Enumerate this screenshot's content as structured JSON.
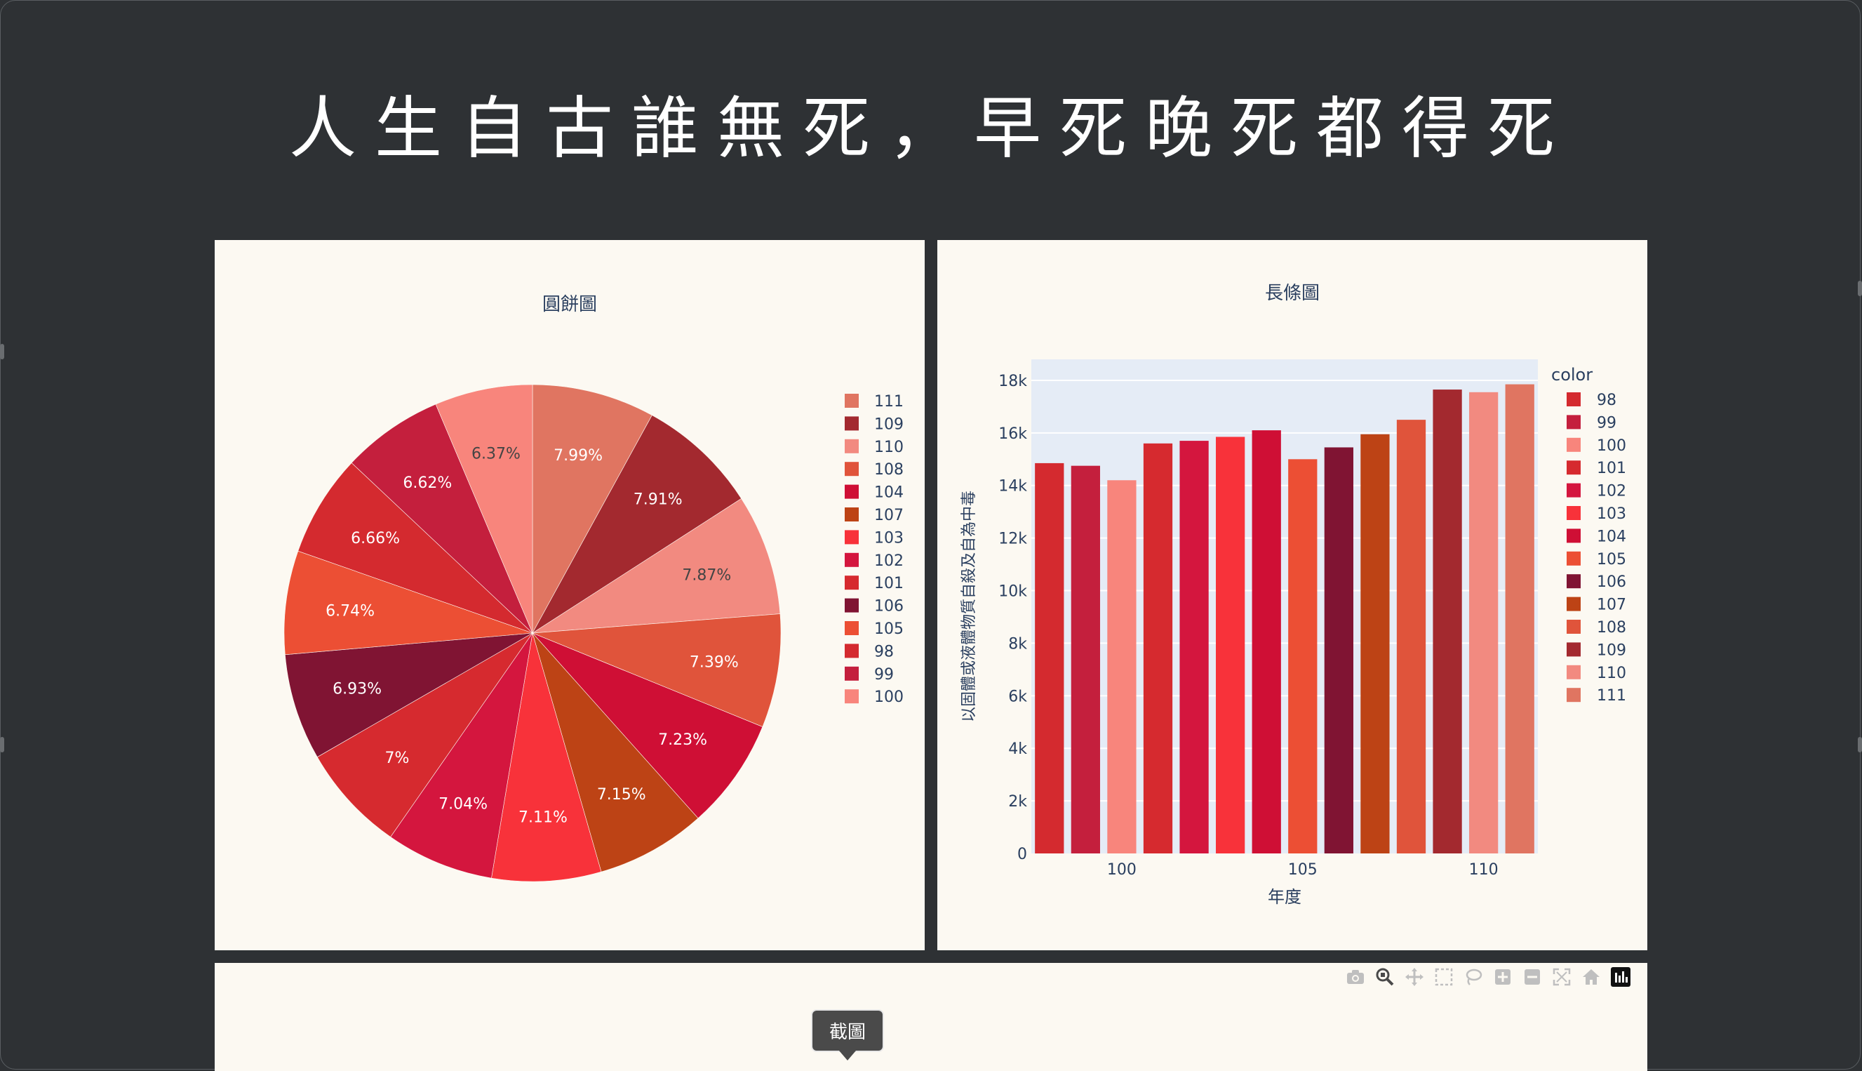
{
  "page": {
    "title": "人生自古誰無死，早死晚死都得死"
  },
  "colors": {
    "background": "#2e3134",
    "panel": "#fcf9f2",
    "plot_bg": "#e5ecf6",
    "text": "#2a3f5f"
  },
  "chart_data": [
    {
      "type": "pie",
      "title": "圓餅圖",
      "labels": [
        "111",
        "109",
        "110",
        "108",
        "104",
        "107",
        "103",
        "102",
        "101",
        "106",
        "105",
        "98",
        "99",
        "100"
      ],
      "values": [
        7.99,
        7.91,
        7.87,
        7.39,
        7.23,
        7.15,
        7.11,
        7.04,
        7.0,
        6.93,
        6.74,
        6.66,
        6.62,
        6.37
      ],
      "text_labels": [
        "7.99%",
        "7.91%",
        "7.87%",
        "7.39%",
        "7.23%",
        "7.15%",
        "7.11%",
        "7.04%",
        "7%",
        "6.93%",
        "6.74%",
        "6.66%",
        "6.62%",
        "6.37%"
      ],
      "colors": [
        "#e07561",
        "#a3292f",
        "#f28a80",
        "#e0543b",
        "#cf0f35",
        "#bd4315",
        "#f8323a",
        "#d4163e",
        "#d62a2f",
        "#801433",
        "#ec4f34",
        "#d42a2f",
        "#c41f3d",
        "#f8857c"
      ],
      "legend_position": "right",
      "sort": "descending",
      "direction": "clockwise"
    },
    {
      "type": "bar",
      "title": "長條圖",
      "categories": [
        98,
        99,
        100,
        101,
        102,
        103,
        104,
        105,
        106,
        107,
        108,
        109,
        110,
        111
      ],
      "values": [
        14850,
        14750,
        14200,
        15600,
        15700,
        15850,
        16100,
        15000,
        15450,
        15950,
        16500,
        17650,
        17550,
        17850
      ],
      "colors": [
        "#d42a2f",
        "#c41f3d",
        "#f8857c",
        "#d62a2f",
        "#d4163e",
        "#f8323a",
        "#cf0f35",
        "#ec4f34",
        "#801433",
        "#bd4315",
        "#e0543b",
        "#a3292f",
        "#f28a80",
        "#e07561"
      ],
      "xlabel": "年度",
      "ylabel": "以固體或液體物質自殺及自為中毒",
      "x_tick_values": [
        100,
        105,
        110
      ],
      "x_tick_labels": [
        "100",
        "105",
        "110"
      ],
      "ylim": [
        0,
        18800
      ],
      "y_tick_values": [
        0,
        2000,
        4000,
        6000,
        8000,
        10000,
        12000,
        14000,
        16000,
        18000
      ],
      "y_tick_labels": [
        "0",
        "2k",
        "4k",
        "6k",
        "8k",
        "10k",
        "12k",
        "14k",
        "16k",
        "18k"
      ],
      "legend_title": "color",
      "legend_items": [
        "98",
        "99",
        "100",
        "101",
        "102",
        "103",
        "104",
        "105",
        "106",
        "107",
        "108",
        "109",
        "110",
        "111"
      ],
      "legend_position": "right",
      "grid": true
    }
  ],
  "toolbar": {
    "icons": [
      "camera-icon",
      "zoom-icon",
      "pan-icon",
      "box-select-icon",
      "lasso-select-icon",
      "zoom-in-icon",
      "zoom-out-icon",
      "autoscale-icon",
      "home-icon",
      "plotly-logo-icon"
    ],
    "tooltip": "截圖"
  }
}
